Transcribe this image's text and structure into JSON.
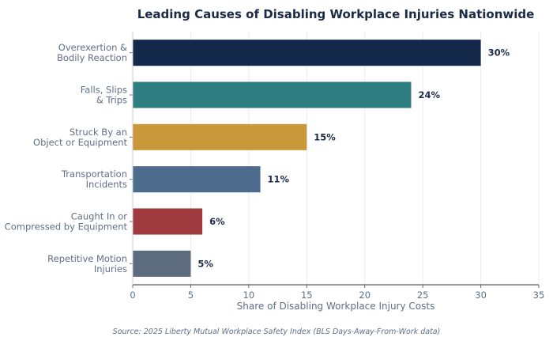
{
  "chart_data": {
    "type": "bar",
    "orientation": "horizontal",
    "title": "Leading Causes of Disabling Workplace Injuries Nationwide",
    "xlabel": "Share of Disabling Workplace Injury Costs",
    "ylabel": "",
    "xlim": [
      0,
      35
    ],
    "xticks": [
      0,
      5,
      10,
      15,
      20,
      25,
      30,
      35
    ],
    "grid": "vertical",
    "categories": [
      [
        "Overexertion &",
        "Bodily Reaction"
      ],
      [
        "Falls, Slips",
        "& Trips"
      ],
      [
        "Struck By an",
        "Object or Equipment"
      ],
      [
        "Transportation",
        "Incidents"
      ],
      [
        "Caught In or",
        "Compressed by Equipment"
      ],
      [
        "Repetitive Motion",
        "Injuries"
      ]
    ],
    "values": [
      30,
      24,
      15,
      11,
      6,
      5
    ],
    "value_labels": [
      "30%",
      "24%",
      "15%",
      "11%",
      "6%",
      "5%"
    ],
    "colors": [
      "#14284b",
      "#2e7d80",
      "#c8983b",
      "#4c6b8d",
      "#9e3a3d",
      "#5c6b7e"
    ],
    "source": "Source: 2025 Liberty Mutual Workplace Safety Index (BLS Days-Away-From-Work data)"
  }
}
